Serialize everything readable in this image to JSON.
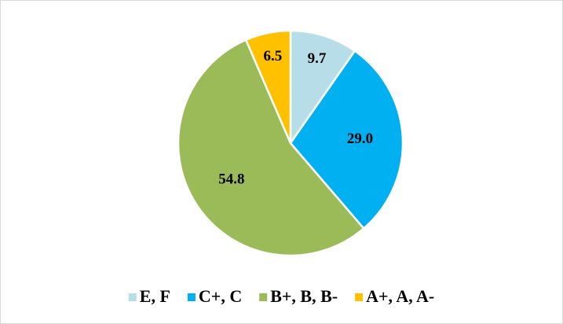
{
  "chart_data": {
    "type": "pie",
    "categories": [
      "E, F",
      "C+, C",
      "B+, B, B-",
      "A+, A, A-"
    ],
    "values": [
      9.7,
      29.0,
      54.8,
      6.5
    ],
    "value_labels": [
      "9.7",
      "29.0",
      "54.8",
      "6.5"
    ],
    "colors": [
      "#b7dde8",
      "#00b0f0",
      "#9bbb59",
      "#ffc000"
    ],
    "legend": "bottom"
  }
}
